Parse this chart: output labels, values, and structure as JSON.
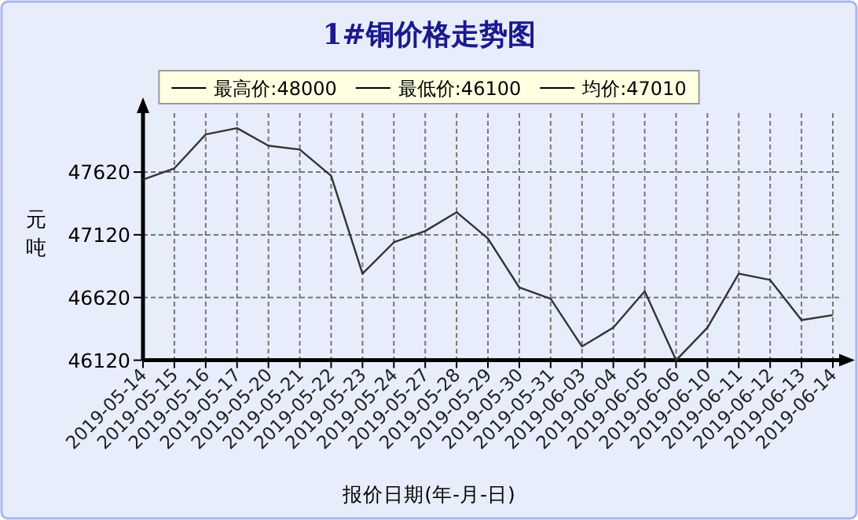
{
  "chart_data": {
    "type": "line",
    "title": "1#铜价格走势图",
    "ylabel": "元吨",
    "xlabel": "报价日期(年-月-日)",
    "annotations": [
      "最高价:48000",
      "最低价:46100",
      "均价:47010"
    ],
    "categories": [
      "2019-05-14",
      "2019-05-15",
      "2019-05-16",
      "2019-05-17",
      "2019-05-20",
      "2019-05-21",
      "2019-05-22",
      "2019-05-23",
      "2019-05-24",
      "2019-05-27",
      "2019-05-28",
      "2019-05-29",
      "2019-05-30",
      "2019-05-31",
      "2019-06-03",
      "2019-06-04",
      "2019-06-05",
      "2019-06-06",
      "2019-06-10",
      "2019-06-11",
      "2019-06-12",
      "2019-06-13",
      "2019-06-14"
    ],
    "series": [
      {
        "color": "#333333",
        "values": [
          47560,
          47650,
          47920,
          47970,
          47830,
          47800,
          47590,
          46810,
          47060,
          47150,
          47300,
          47090,
          46700,
          46610,
          46230,
          46380,
          46670,
          46120,
          46380,
          46810,
          46760,
          46440,
          46480
        ]
      }
    ],
    "ylim": [
      46120,
      48090
    ],
    "yticks": [
      46120,
      46620,
      47120,
      47620
    ],
    "grid": true,
    "marker": "none",
    "line_style": "solid"
  }
}
